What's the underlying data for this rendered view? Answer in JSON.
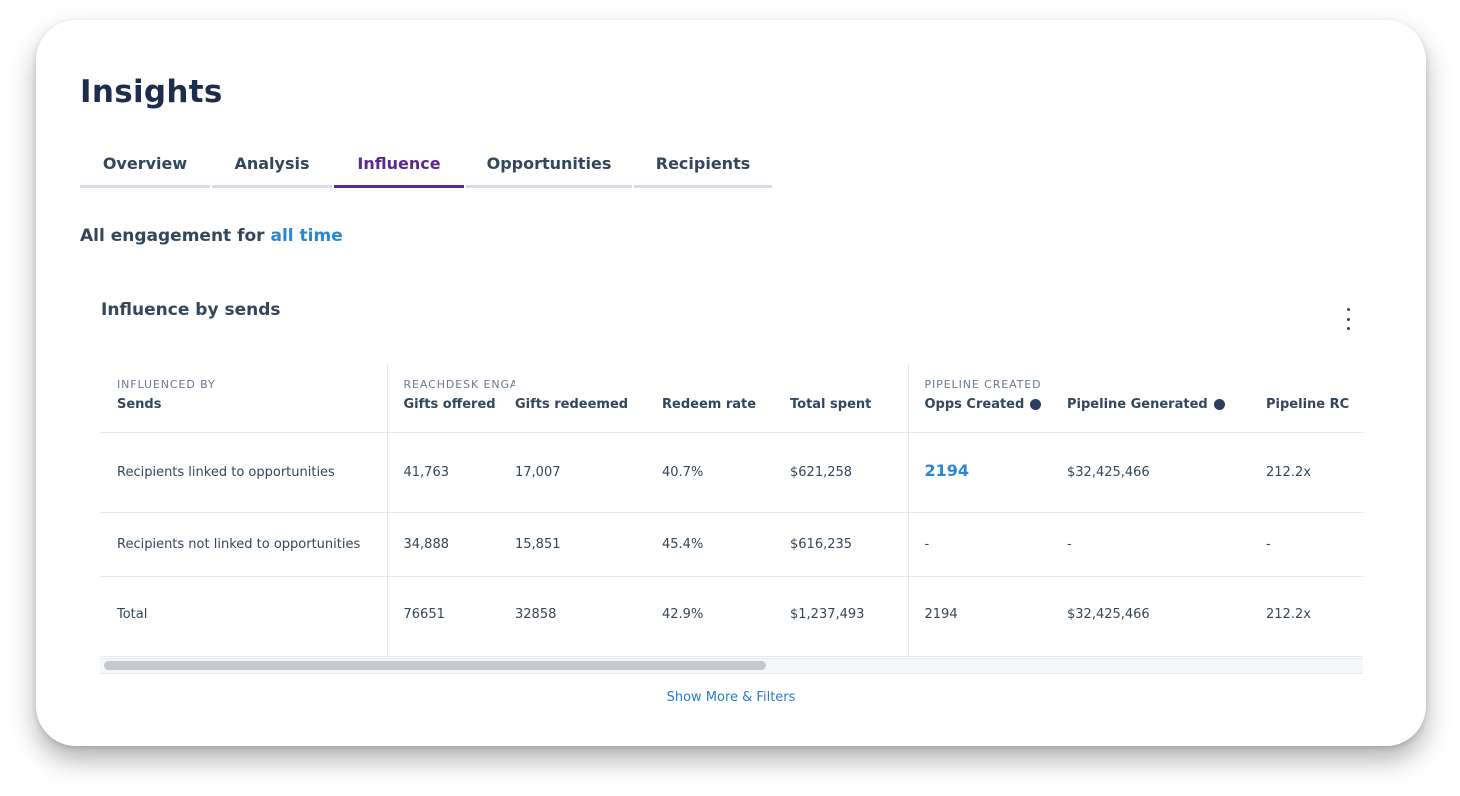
{
  "page": {
    "title": "Insights"
  },
  "tabs": [
    {
      "label": "Overview",
      "active": false
    },
    {
      "label": "Analysis",
      "active": false
    },
    {
      "label": "Influence",
      "active": true
    },
    {
      "label": "Opportunities",
      "active": false
    },
    {
      "label": "Recipients",
      "active": false
    }
  ],
  "engagement": {
    "prefix": "All engagement for",
    "range_link": "all time"
  },
  "section": {
    "title": "Influence by sends",
    "menu_icon": "kebab-menu-icon"
  },
  "table": {
    "groups": {
      "influenced_by": "INFLUENCED BY",
      "reachdesk_engagement": "REACHDESK ENGAGEMENT",
      "pipeline_created": "PIPELINE CREATED"
    },
    "columns": {
      "sends": "Sends",
      "gifts_offered": "Gifts offered",
      "gifts_redeemed": "Gifts redeemed",
      "redeem_rate": "Redeem rate",
      "total_spent": "Total spent",
      "opps_created": "Opps Created",
      "pipeline_generated": "Pipeline Generated",
      "pipeline_roi": "Pipeline RC"
    },
    "rows": [
      {
        "label": "Recipients linked to opportunities",
        "gifts_offered": "41,763",
        "gifts_redeemed": "17,007",
        "redeem_rate": "40.7%",
        "total_spent": "$621,258",
        "opps_created": "2194",
        "pipeline_generated": "$32,425,466",
        "pipeline_roi": "212.2x"
      },
      {
        "label": "Recipients not linked to opportunities",
        "gifts_offered": "34,888",
        "gifts_redeemed": "15,851",
        "redeem_rate": "45.4%",
        "total_spent": "$616,235",
        "opps_created": "-",
        "pipeline_generated": "-",
        "pipeline_roi": "-"
      },
      {
        "label": "Total",
        "gifts_offered": "76651",
        "gifts_redeemed": "32858",
        "redeem_rate": "42.9%",
        "total_spent": "$1,237,493",
        "opps_created": "2194",
        "pipeline_generated": "$32,425,466",
        "pipeline_roi": "212.2x"
      }
    ],
    "scroll_position": 0.0
  },
  "footer": {
    "show_more": "Show More & Filters"
  },
  "colors": {
    "accent": "#5a2a8c",
    "link": "#2a86d6",
    "text": "#33475b"
  }
}
